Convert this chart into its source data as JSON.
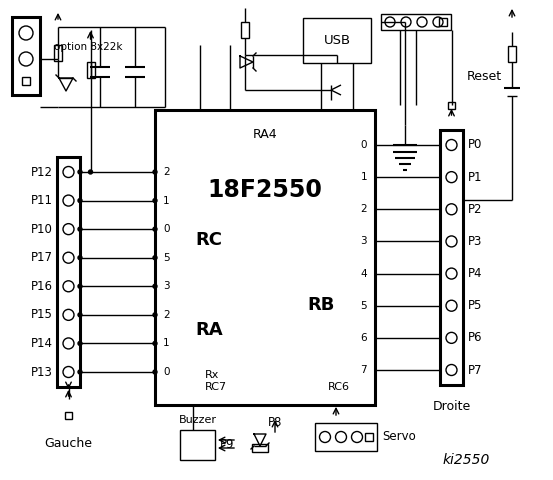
{
  "bg_color": "#ffffff",
  "chip_label": "18F2550",
  "chip_sublabel": "RA4",
  "rc_label": "RC",
  "ra_label": "RA",
  "rb_label": "RB",
  "rc7_label": "RC7",
  "rc6_label": "RC6",
  "rx_label": "Rx",
  "usb_label": "USB",
  "reset_label": "Reset",
  "gauche_label": "Gauche",
  "droite_label": "Droite",
  "buzzer_label": "Buzzer",
  "servo_label": "Servo",
  "ki2550_label": "ki2550",
  "option_label": "option 8x22k",
  "p9_label": "P9",
  "p8_label": "P8",
  "left_pins": [
    "P12",
    "P11",
    "P10",
    "P17",
    "P16",
    "P15",
    "P14",
    "P13"
  ],
  "rc_pins": [
    "2",
    "1",
    "0",
    "5",
    "3",
    "2",
    "1",
    "0"
  ],
  "rb_pins": [
    "0",
    "1",
    "2",
    "3",
    "4",
    "5",
    "6",
    "7"
  ],
  "right_pins": [
    "P0",
    "P1",
    "P2",
    "P3",
    "P4",
    "P5",
    "P6",
    "P7"
  ]
}
